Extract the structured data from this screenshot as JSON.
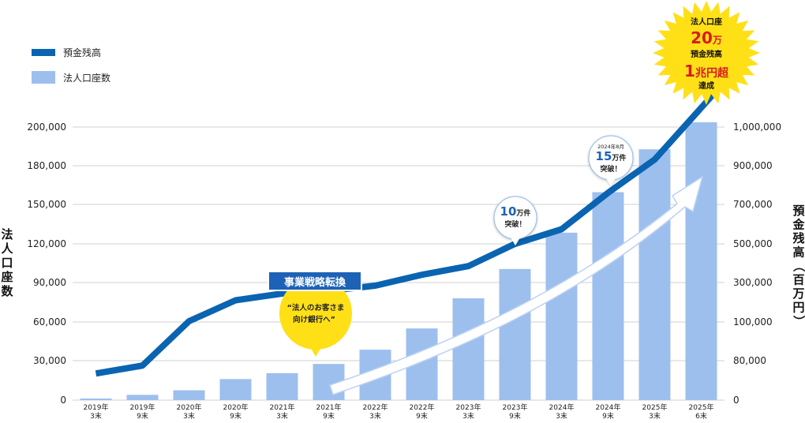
{
  "chart_data": {
    "type": "bar",
    "categories": [
      [
        "2019年",
        "3末"
      ],
      [
        "2019年",
        "9末"
      ],
      [
        "2020年",
        "3末"
      ],
      [
        "2020年",
        "9末"
      ],
      [
        "2021年",
        "3末"
      ],
      [
        "2021年",
        "9末"
      ],
      [
        "2022年",
        "3末"
      ],
      [
        "2022年",
        "9末"
      ],
      [
        "2023年",
        "3末"
      ],
      [
        "2023年",
        "9末"
      ],
      [
        "2024年",
        "3末"
      ],
      [
        "2024年",
        "9末"
      ],
      [
        "2025年",
        "3末"
      ],
      [
        "2025年",
        "6末"
      ]
    ],
    "legend": [
      {
        "name": "預金残高",
        "type": "line",
        "color": "#0a64b1"
      },
      {
        "name": "法人口座数",
        "type": "bar",
        "color": "#9dbfee"
      }
    ],
    "series": [
      {
        "name": "法人口座数",
        "type": "bar",
        "axis": "left",
        "values": [
          1200,
          4000,
          7500,
          16000,
          20500,
          27500,
          38500,
          55000,
          78000,
          100500,
          128500,
          159500,
          188500,
          202500
        ]
      },
      {
        "name": "預金残高",
        "type": "line",
        "axis": "right",
        "values": [
          54000,
          70000,
          104000,
          210000,
          244000,
          258000,
          284000,
          340000,
          385000,
          500000,
          574000,
          760000,
          916000,
          1050000
        ]
      }
    ],
    "y_left": {
      "label": "法人口座数",
      "ticks": [
        "0",
        "30,000",
        "60,000",
        "90,000",
        "120,000",
        "150,000",
        "180,000",
        "200,000"
      ]
    },
    "y_right": {
      "label": "預金残高（百万円）",
      "ticks": [
        "0",
        "80,000",
        "100,000",
        "300,000",
        "500,000",
        "700,000",
        "900,000",
        "1,000,000"
      ]
    },
    "grid": true,
    "legend_position": "top-left",
    "annotations": {
      "strategy": {
        "title": "事業戦略転換",
        "body": [
          "“法人のお客さま",
          "向け銀行へ”"
        ]
      },
      "b10": {
        "num": "10",
        "unit": "万件",
        "line2": "突破！"
      },
      "b15": {
        "date": "2024年8月",
        "num": "15",
        "unit": "万件",
        "line2": "突破！"
      },
      "star": {
        "l1": "法人口座",
        "l2num": "20",
        "l2unit": "万",
        "l3": "預金残高",
        "l4num": "1",
        "l4unit": "兆円超",
        "l5": "達成"
      }
    }
  }
}
